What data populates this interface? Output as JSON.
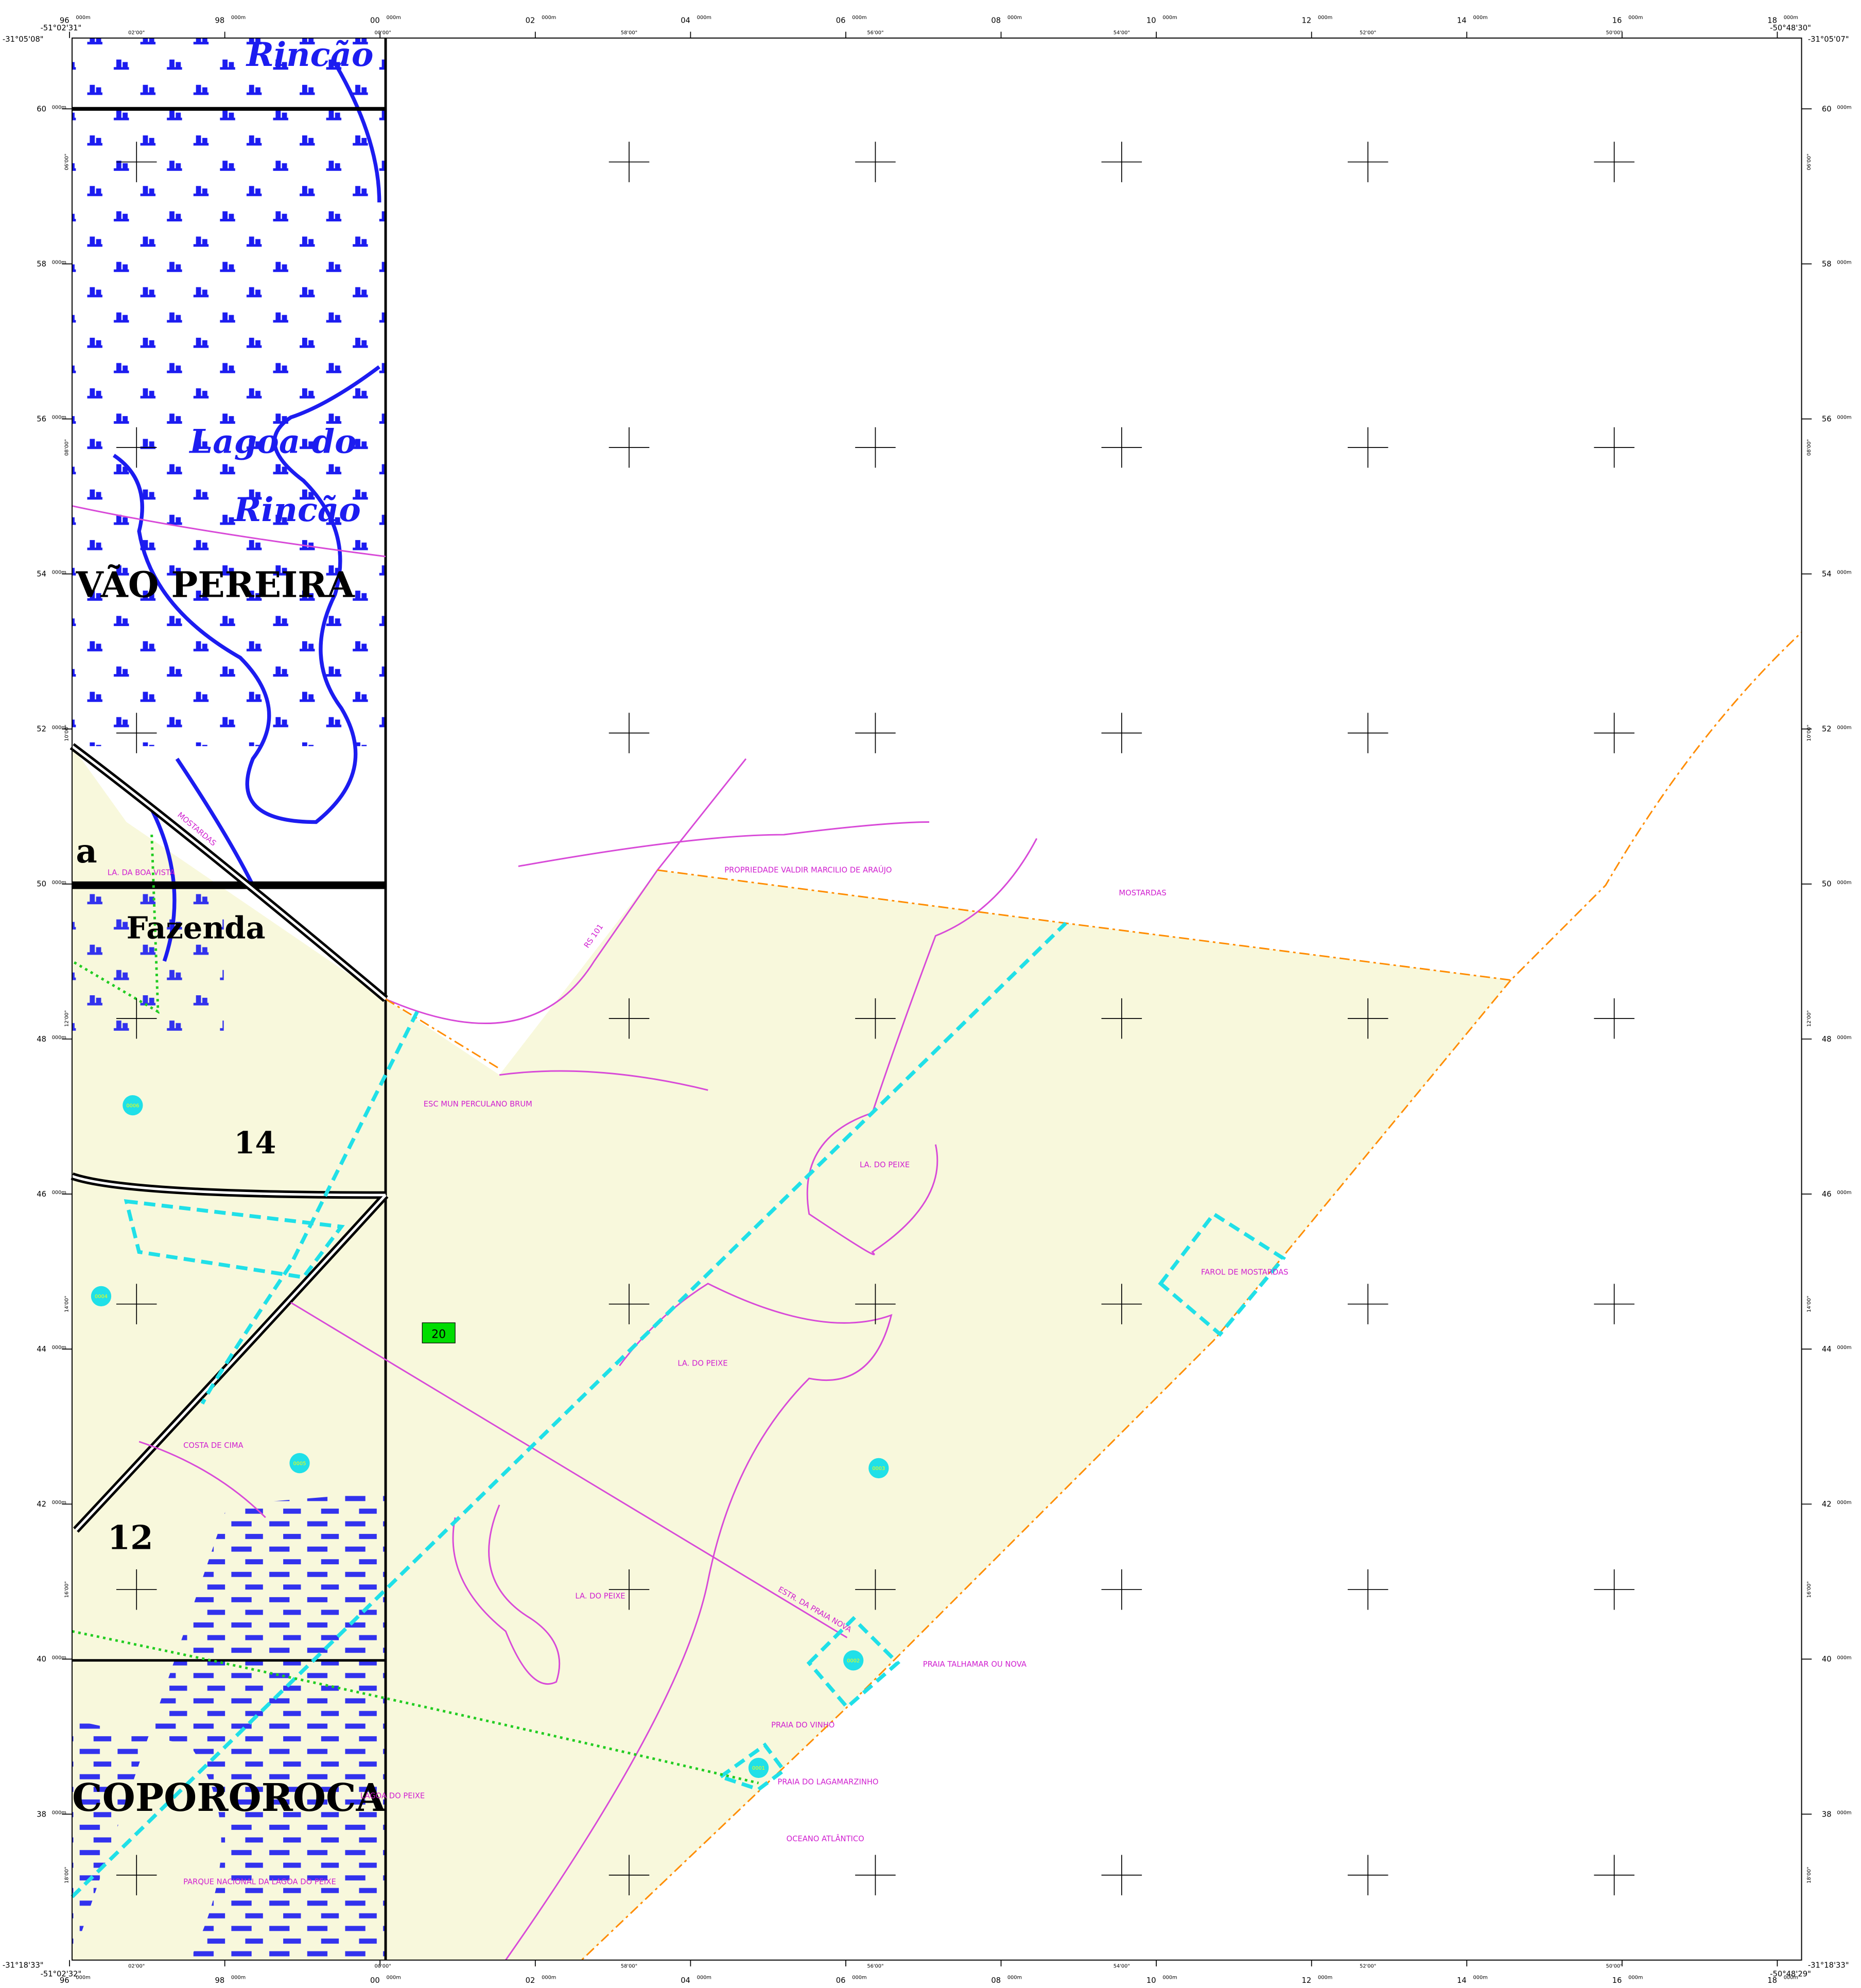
{
  "corners": {
    "top_left_lat": "-31°05'08\"",
    "top_left_lon": "-51°02'31\"",
    "top_right_lon": "-50°48'30\"",
    "top_right_lat": "-31°05'07\"",
    "bottom_left_lat": "-31°18'33\"",
    "bottom_left_lon": "-51°02'32\"",
    "bottom_right_lon": "-50°48'29\"",
    "bottom_right_lat": "-31°18'33\""
  },
  "eastings": [
    {
      "label": "96",
      "unit": "000m"
    },
    {
      "label": "98",
      "unit": "000m"
    },
    {
      "label": "00",
      "unit": "000m"
    },
    {
      "label": "02",
      "unit": "000m"
    },
    {
      "label": "04",
      "unit": "000m"
    },
    {
      "label": "06",
      "unit": "000m"
    },
    {
      "label": "08",
      "unit": "000m"
    },
    {
      "label": "10",
      "unit": "000m"
    },
    {
      "label": "12",
      "unit": "000m"
    },
    {
      "label": "14",
      "unit": "000m"
    },
    {
      "label": "16",
      "unit": "000m"
    },
    {
      "label": "18",
      "unit": "000m"
    }
  ],
  "northings": [
    {
      "label": "60",
      "unit": "000m"
    },
    {
      "label": "58",
      "unit": "000m"
    },
    {
      "label": "56",
      "unit": "000m"
    },
    {
      "label": "54",
      "unit": "000m"
    },
    {
      "label": "52",
      "unit": "000m"
    },
    {
      "label": "50",
      "unit": "000m"
    },
    {
      "label": "48",
      "unit": "000m"
    },
    {
      "label": "46",
      "unit": "000m"
    },
    {
      "label": "44",
      "unit": "000m"
    },
    {
      "label": "42",
      "unit": "000m"
    },
    {
      "label": "40",
      "unit": "000m"
    },
    {
      "label": "38",
      "unit": "000m"
    }
  ],
  "longitudes": [
    "02'00\"",
    "00'00\"",
    "58'00\"",
    "56'00\"",
    "54'00\"",
    "52'00\"",
    "50'00\""
  ],
  "latitudes": [
    "06'00\"",
    "08'00\"",
    "10'00\"",
    "12'00\"",
    "14'00\"",
    "16'00\"",
    "18'00\""
  ],
  "scan_labels": [
    "Rincão",
    "Lagoa do",
    "Rincão",
    "VÃO PEREIRA",
    "a",
    "Fazenda",
    "14",
    "12",
    "COPOROROCA"
  ],
  "map_labels": [
    "MOSTARDAS",
    "PROPRIEDADE VALDIR MARCILIO DE ARAÚJO",
    "RS 101",
    "ESC MUN PERCULANO BRUM",
    "LA. DO PEIXE",
    "LA. DO PEIXE",
    "LA. DO PEIXE",
    "FAROL DE MOSTARDAS",
    "ESTR. DA PRAIA NOVA",
    "PRAIA TALHAMAR OU NOVA",
    "PRAIA DO VINHO",
    "PRAIA DO LAGAMARZINHO",
    "OCEANO ATLÂNTICO",
    "LAGOA DO PEIXE",
    "PARQUE NACIONAL DA LAGOA DO PEIXE",
    "COSTA DE CIMA",
    "LA. DA BOA VISTA",
    "MOSTARDAS"
  ],
  "road_number": "20",
  "points": [
    "0006",
    "0005",
    "0004",
    "0003",
    "0002",
    "0001"
  ]
}
